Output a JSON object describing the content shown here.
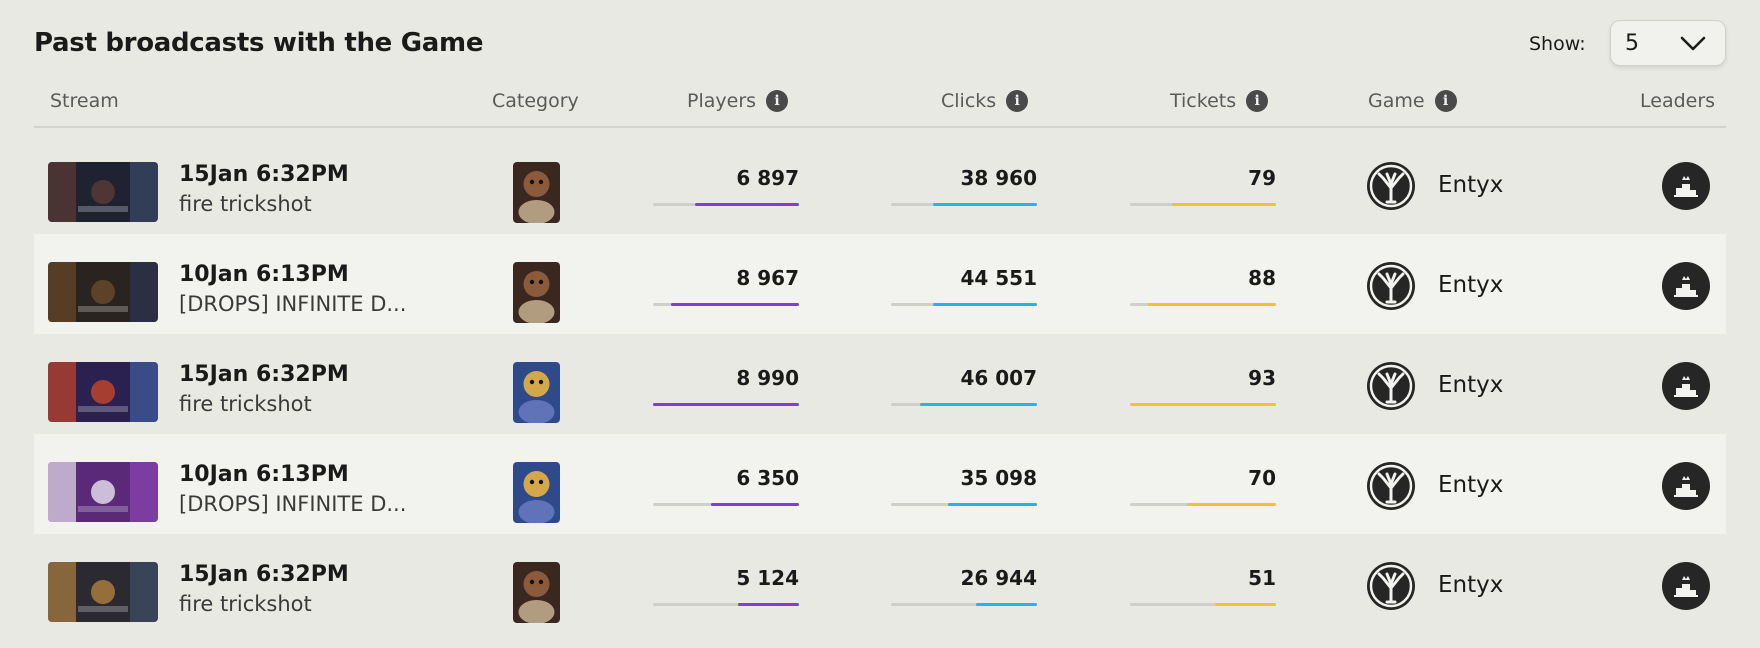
{
  "page": {
    "title": "Past broadcasts with the Game",
    "show_label": "Show:",
    "show_value": "5"
  },
  "columns": {
    "stream": "Stream",
    "category": "Category",
    "players": "Players",
    "clicks": "Clicks",
    "tickets": "Tickets",
    "game": "Game",
    "leaders": "Leaders"
  },
  "colors": {
    "players": "#7b3fe0",
    "clicks": "#22b4ec",
    "tickets": "#f4c32c"
  },
  "rows": [
    {
      "date": "15Jan 6:32PM",
      "title": "fire trickshot",
      "category_art": "bear-portrait",
      "players": "6 897",
      "players_pct": 0.71,
      "clicks": "38 960",
      "clicks_pct": 0.71,
      "tickets": "79",
      "tickets_pct": 0.71,
      "game": "Entyx",
      "game_icon": "tree-icon"
    },
    {
      "date": "10Jan 6:13PM",
      "title": "[DROPS] INFINITE D...",
      "category_art": "bear-portrait",
      "players": "8 967",
      "players_pct": 0.88,
      "clicks": "44 551",
      "clicks_pct": 0.71,
      "tickets": "88",
      "tickets_pct": 0.88,
      "game": "Entyx",
      "game_icon": "tree-icon"
    },
    {
      "date": "15Jan 6:32PM",
      "title": "fire trickshot",
      "category_art": "hero-portrait",
      "players": "8 990",
      "players_pct": 1.0,
      "clicks": "46 007",
      "clicks_pct": 0.8,
      "tickets": "93",
      "tickets_pct": 1.0,
      "game": "Entyx",
      "game_icon": "tree-icon"
    },
    {
      "date": "10Jan 6:13PM",
      "title": "[DROPS] INFINITE D...",
      "category_art": "hero-portrait",
      "players": "6 350",
      "players_pct": 0.6,
      "clicks": "35 098",
      "clicks_pct": 0.61,
      "tickets": "70",
      "tickets_pct": 0.61,
      "game": "Entyx",
      "game_icon": "tree-icon"
    },
    {
      "date": "15Jan 6:32PM",
      "title": "fire trickshot",
      "category_art": "bear-portrait",
      "players": "5 124",
      "players_pct": 0.42,
      "clicks": "26 944",
      "clicks_pct": 0.42,
      "tickets": "51",
      "tickets_pct": 0.42,
      "game": "Entyx",
      "game_icon": "tree-icon"
    }
  ]
}
